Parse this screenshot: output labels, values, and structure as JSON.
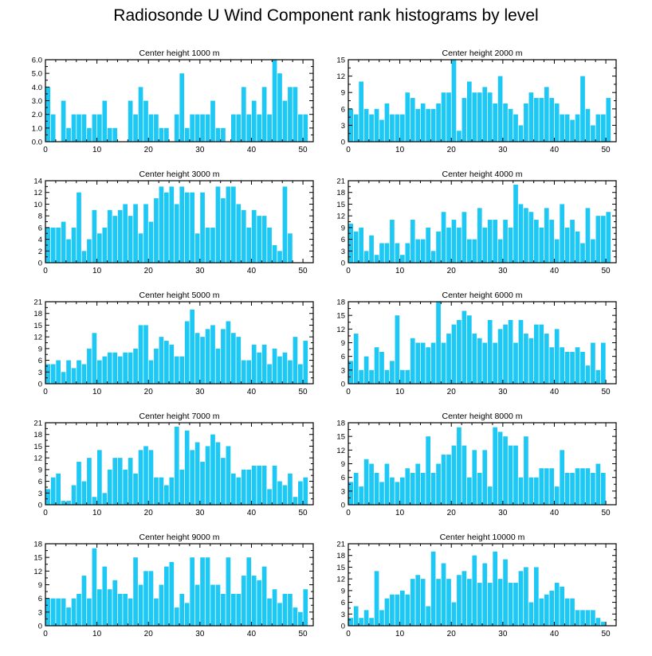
{
  "title": "Radiosonde U Wind Component rank histograms by level",
  "colors": {
    "bar": "#1ec8f5",
    "bar_stroke": "#ffffff",
    "axis": "#000000"
  },
  "chart_data": [
    {
      "type": "bar",
      "title": "Center height 1000 m",
      "xlim": [
        0,
        52
      ],
      "ylim": [
        0,
        6
      ],
      "xticks": [
        0,
        10,
        20,
        30,
        40,
        50
      ],
      "yticks": [
        0,
        1,
        2,
        3,
        4,
        5,
        6
      ],
      "ytick_labels": [
        "0.0",
        "1.0",
        "2.0",
        "3.0",
        "4.0",
        "5.0",
        "6.0"
      ],
      "values": [
        4,
        2,
        0,
        3,
        1,
        2,
        2,
        2,
        1,
        2,
        2,
        3,
        1,
        1,
        0,
        0,
        3,
        2,
        4,
        3,
        2,
        2,
        1,
        1,
        0,
        2,
        5,
        1,
        2,
        2,
        2,
        2,
        3,
        1,
        1,
        0,
        2,
        2,
        4,
        2,
        3,
        2,
        4,
        2,
        6,
        5,
        3,
        4,
        4,
        2,
        2
      ]
    },
    {
      "type": "bar",
      "title": "Center height 2000 m",
      "xlim": [
        0,
        52
      ],
      "ylim": [
        0,
        15
      ],
      "xticks": [
        0,
        10,
        20,
        30,
        40,
        50
      ],
      "yticks": [
        0,
        3,
        6,
        9,
        12,
        15
      ],
      "ytick_labels": [
        "0",
        "3",
        "6",
        "9",
        "12",
        "15"
      ],
      "values": [
        6,
        5,
        11,
        6,
        5,
        6,
        4,
        7,
        5,
        5,
        5,
        9,
        8,
        6,
        7,
        6,
        6,
        7,
        9,
        9,
        15,
        2,
        8,
        11,
        9,
        9,
        10,
        9,
        7,
        12,
        7,
        6,
        5,
        3,
        7,
        9,
        8,
        8,
        10,
        8,
        7,
        5,
        5,
        4,
        5,
        12,
        6,
        3,
        5,
        5,
        8
      ]
    },
    {
      "type": "bar",
      "title": "Center height 3000 m",
      "xlim": [
        0,
        52
      ],
      "ylim": [
        0,
        14
      ],
      "xticks": [
        0,
        10,
        20,
        30,
        40,
        50
      ],
      "yticks": [
        0,
        2,
        4,
        6,
        8,
        10,
        12,
        14
      ],
      "ytick_labels": [
        "0",
        "2",
        "4",
        "6",
        "8",
        "10",
        "12",
        "14"
      ],
      "values": [
        6,
        6,
        6,
        7,
        4,
        6,
        12,
        2,
        4,
        9,
        5,
        6,
        9,
        8,
        9,
        10,
        8,
        10,
        5,
        10,
        7,
        11,
        13,
        12,
        13,
        10,
        13,
        12,
        12,
        5,
        12,
        6,
        6,
        13,
        11,
        13,
        13,
        10,
        9,
        6,
        9,
        8,
        8,
        6,
        3,
        2,
        13,
        5,
        0,
        0,
        0
      ]
    },
    {
      "type": "bar",
      "title": "Center height 4000 m",
      "xlim": [
        0,
        52
      ],
      "ylim": [
        0,
        21
      ],
      "xticks": [
        0,
        10,
        20,
        30,
        40,
        50
      ],
      "yticks": [
        0,
        3,
        6,
        9,
        12,
        15,
        18,
        21
      ],
      "ytick_labels": [
        "0",
        "3",
        "6",
        "9",
        "12",
        "15",
        "18",
        "21"
      ],
      "values": [
        10,
        8,
        9,
        3,
        7,
        2,
        5,
        5,
        11,
        5,
        2,
        5,
        11,
        6,
        6,
        9,
        3,
        8,
        13,
        9,
        11,
        9,
        13,
        6,
        6,
        14,
        9,
        11,
        11,
        6,
        11,
        9,
        20,
        15,
        14,
        13,
        11,
        9,
        14,
        11,
        6,
        15,
        9,
        11,
        8,
        5,
        14,
        6,
        12,
        12,
        13
      ]
    },
    {
      "type": "bar",
      "title": "Center height 5000 m",
      "xlim": [
        0,
        52
      ],
      "ylim": [
        0,
        21
      ],
      "xticks": [
        0,
        10,
        20,
        30,
        40,
        50
      ],
      "yticks": [
        0,
        3,
        6,
        9,
        12,
        15,
        18,
        21
      ],
      "ytick_labels": [
        "0",
        "3",
        "6",
        "9",
        "12",
        "15",
        "18",
        "21"
      ],
      "values": [
        5,
        5,
        6,
        3,
        6,
        4,
        6,
        5,
        9,
        13,
        6,
        7,
        8,
        8,
        7,
        8,
        8,
        9,
        15,
        15,
        6,
        9,
        12,
        11,
        10,
        7,
        7,
        16,
        19,
        13,
        12,
        14,
        15,
        9,
        14,
        16,
        13,
        12,
        6,
        6,
        10,
        8,
        10,
        5,
        9,
        7,
        8,
        6,
        12,
        5,
        11
      ]
    },
    {
      "type": "bar",
      "title": "Center height 6000 m",
      "xlim": [
        0,
        52
      ],
      "ylim": [
        0,
        18
      ],
      "xticks": [
        0,
        10,
        20,
        30,
        40,
        50
      ],
      "yticks": [
        0,
        3,
        6,
        9,
        12,
        15,
        18
      ],
      "ytick_labels": [
        "0",
        "3",
        "6",
        "9",
        "12",
        "15",
        "18"
      ],
      "values": [
        5,
        11,
        3,
        6,
        3,
        8,
        7,
        3,
        5,
        15,
        3,
        3,
        10,
        9,
        9,
        8,
        9,
        18,
        9,
        11,
        13,
        14,
        16,
        15,
        11,
        10,
        9,
        14,
        9,
        12,
        13,
        14,
        9,
        14,
        11,
        10,
        13,
        13,
        11,
        8,
        12,
        8,
        7,
        7,
        8,
        7,
        4,
        9,
        3,
        9,
        0
      ]
    },
    {
      "type": "bar",
      "title": "Center height 7000 m",
      "xlim": [
        0,
        52
      ],
      "ylim": [
        0,
        21
      ],
      "xticks": [
        0,
        10,
        20,
        30,
        40,
        50
      ],
      "yticks": [
        0,
        3,
        6,
        9,
        12,
        15,
        18,
        21
      ],
      "ytick_labels": [
        "0",
        "3",
        "6",
        "9",
        "12",
        "15",
        "18",
        "21"
      ],
      "values": [
        4,
        7,
        8,
        1,
        1,
        5,
        11,
        6,
        12,
        2,
        14,
        3,
        9,
        12,
        12,
        9,
        12,
        8,
        14,
        15,
        14,
        7,
        7,
        5,
        7,
        20,
        9,
        19,
        14,
        16,
        11,
        15,
        18,
        16,
        12,
        15,
        8,
        7,
        9,
        9,
        10,
        10,
        10,
        4,
        10,
        6,
        5,
        8,
        2,
        6,
        7
      ]
    },
    {
      "type": "bar",
      "title": "Center height 8000 m",
      "xlim": [
        0,
        52
      ],
      "ylim": [
        0,
        18
      ],
      "xticks": [
        0,
        10,
        20,
        30,
        40,
        50
      ],
      "yticks": [
        0,
        3,
        6,
        9,
        12,
        15,
        18
      ],
      "ytick_labels": [
        "0",
        "3",
        "6",
        "9",
        "12",
        "15",
        "18"
      ],
      "values": [
        5,
        7,
        4,
        10,
        9,
        7,
        5,
        9,
        6,
        5,
        6,
        8,
        7,
        9,
        7,
        15,
        7,
        9,
        11,
        11,
        13,
        17,
        13,
        6,
        12,
        7,
        12,
        4,
        17,
        16,
        15,
        13,
        13,
        6,
        15,
        6,
        6,
        8,
        8,
        8,
        4,
        12,
        7,
        7,
        8,
        8,
        8,
        7,
        9,
        7,
        0
      ]
    },
    {
      "type": "bar",
      "title": "Center height 9000 m",
      "xlim": [
        0,
        52
      ],
      "ylim": [
        0,
        18
      ],
      "xticks": [
        0,
        10,
        20,
        30,
        40,
        50
      ],
      "yticks": [
        0,
        3,
        6,
        9,
        12,
        15,
        18
      ],
      "ytick_labels": [
        "0",
        "3",
        "6",
        "9",
        "12",
        "15",
        "18"
      ],
      "values": [
        6,
        6,
        6,
        6,
        4,
        6,
        7,
        11,
        6,
        17,
        8,
        13,
        8,
        10,
        7,
        7,
        6,
        15,
        9,
        12,
        12,
        6,
        9,
        13,
        14,
        4,
        7,
        5,
        15,
        9,
        15,
        15,
        9,
        9,
        7,
        15,
        7,
        7,
        11,
        15,
        11,
        10,
        13,
        6,
        8,
        5,
        7,
        7,
        4,
        3,
        8
      ]
    },
    {
      "type": "bar",
      "title": "Center height 10000 m",
      "xlim": [
        0,
        52
      ],
      "ylim": [
        0,
        21
      ],
      "xticks": [
        0,
        10,
        20,
        30,
        40,
        50
      ],
      "yticks": [
        0,
        3,
        6,
        9,
        12,
        15,
        18,
        21
      ],
      "ytick_labels": [
        "0",
        "3",
        "6",
        "9",
        "12",
        "15",
        "18",
        "21"
      ],
      "values": [
        2,
        5,
        2,
        4,
        2,
        14,
        4,
        7,
        8,
        8,
        9,
        8,
        12,
        13,
        12,
        5,
        19,
        12,
        16,
        12,
        6,
        13,
        14,
        12,
        18,
        11,
        16,
        11,
        19,
        12,
        17,
        11,
        11,
        14,
        15,
        6,
        15,
        7,
        8,
        9,
        11,
        10,
        7,
        7,
        4,
        4,
        4,
        4,
        2,
        1,
        0
      ]
    }
  ]
}
